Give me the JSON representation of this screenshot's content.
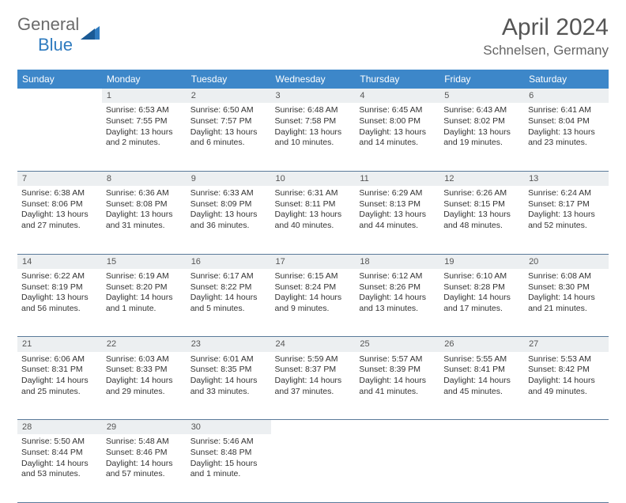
{
  "logo": {
    "general": "General",
    "blue": "Blue"
  },
  "header": {
    "title": "April 2024",
    "location": "Schnelsen, Germany"
  },
  "colors": {
    "header_bg": "#3d87c9",
    "header_fg": "#ffffff",
    "daynum_bg": "#eceff1",
    "row_divider": "#5a7a9a",
    "logo_gray": "#6a6a6a",
    "logo_blue": "#2f7bbf"
  },
  "weekdays": [
    "Sunday",
    "Monday",
    "Tuesday",
    "Wednesday",
    "Thursday",
    "Friday",
    "Saturday"
  ],
  "weeks": [
    {
      "nums": [
        "",
        "1",
        "2",
        "3",
        "4",
        "5",
        "6"
      ],
      "cells": [
        null,
        {
          "sunrise": "Sunrise: 6:53 AM",
          "sunset": "Sunset: 7:55 PM",
          "day1": "Daylight: 13 hours",
          "day2": "and 2 minutes."
        },
        {
          "sunrise": "Sunrise: 6:50 AM",
          "sunset": "Sunset: 7:57 PM",
          "day1": "Daylight: 13 hours",
          "day2": "and 6 minutes."
        },
        {
          "sunrise": "Sunrise: 6:48 AM",
          "sunset": "Sunset: 7:58 PM",
          "day1": "Daylight: 13 hours",
          "day2": "and 10 minutes."
        },
        {
          "sunrise": "Sunrise: 6:45 AM",
          "sunset": "Sunset: 8:00 PM",
          "day1": "Daylight: 13 hours",
          "day2": "and 14 minutes."
        },
        {
          "sunrise": "Sunrise: 6:43 AM",
          "sunset": "Sunset: 8:02 PM",
          "day1": "Daylight: 13 hours",
          "day2": "and 19 minutes."
        },
        {
          "sunrise": "Sunrise: 6:41 AM",
          "sunset": "Sunset: 8:04 PM",
          "day1": "Daylight: 13 hours",
          "day2": "and 23 minutes."
        }
      ]
    },
    {
      "nums": [
        "7",
        "8",
        "9",
        "10",
        "11",
        "12",
        "13"
      ],
      "cells": [
        {
          "sunrise": "Sunrise: 6:38 AM",
          "sunset": "Sunset: 8:06 PM",
          "day1": "Daylight: 13 hours",
          "day2": "and 27 minutes."
        },
        {
          "sunrise": "Sunrise: 6:36 AM",
          "sunset": "Sunset: 8:08 PM",
          "day1": "Daylight: 13 hours",
          "day2": "and 31 minutes."
        },
        {
          "sunrise": "Sunrise: 6:33 AM",
          "sunset": "Sunset: 8:09 PM",
          "day1": "Daylight: 13 hours",
          "day2": "and 36 minutes."
        },
        {
          "sunrise": "Sunrise: 6:31 AM",
          "sunset": "Sunset: 8:11 PM",
          "day1": "Daylight: 13 hours",
          "day2": "and 40 minutes."
        },
        {
          "sunrise": "Sunrise: 6:29 AM",
          "sunset": "Sunset: 8:13 PM",
          "day1": "Daylight: 13 hours",
          "day2": "and 44 minutes."
        },
        {
          "sunrise": "Sunrise: 6:26 AM",
          "sunset": "Sunset: 8:15 PM",
          "day1": "Daylight: 13 hours",
          "day2": "and 48 minutes."
        },
        {
          "sunrise": "Sunrise: 6:24 AM",
          "sunset": "Sunset: 8:17 PM",
          "day1": "Daylight: 13 hours",
          "day2": "and 52 minutes."
        }
      ]
    },
    {
      "nums": [
        "14",
        "15",
        "16",
        "17",
        "18",
        "19",
        "20"
      ],
      "cells": [
        {
          "sunrise": "Sunrise: 6:22 AM",
          "sunset": "Sunset: 8:19 PM",
          "day1": "Daylight: 13 hours",
          "day2": "and 56 minutes."
        },
        {
          "sunrise": "Sunrise: 6:19 AM",
          "sunset": "Sunset: 8:20 PM",
          "day1": "Daylight: 14 hours",
          "day2": "and 1 minute."
        },
        {
          "sunrise": "Sunrise: 6:17 AM",
          "sunset": "Sunset: 8:22 PM",
          "day1": "Daylight: 14 hours",
          "day2": "and 5 minutes."
        },
        {
          "sunrise": "Sunrise: 6:15 AM",
          "sunset": "Sunset: 8:24 PM",
          "day1": "Daylight: 14 hours",
          "day2": "and 9 minutes."
        },
        {
          "sunrise": "Sunrise: 6:12 AM",
          "sunset": "Sunset: 8:26 PM",
          "day1": "Daylight: 14 hours",
          "day2": "and 13 minutes."
        },
        {
          "sunrise": "Sunrise: 6:10 AM",
          "sunset": "Sunset: 8:28 PM",
          "day1": "Daylight: 14 hours",
          "day2": "and 17 minutes."
        },
        {
          "sunrise": "Sunrise: 6:08 AM",
          "sunset": "Sunset: 8:30 PM",
          "day1": "Daylight: 14 hours",
          "day2": "and 21 minutes."
        }
      ]
    },
    {
      "nums": [
        "21",
        "22",
        "23",
        "24",
        "25",
        "26",
        "27"
      ],
      "cells": [
        {
          "sunrise": "Sunrise: 6:06 AM",
          "sunset": "Sunset: 8:31 PM",
          "day1": "Daylight: 14 hours",
          "day2": "and 25 minutes."
        },
        {
          "sunrise": "Sunrise: 6:03 AM",
          "sunset": "Sunset: 8:33 PM",
          "day1": "Daylight: 14 hours",
          "day2": "and 29 minutes."
        },
        {
          "sunrise": "Sunrise: 6:01 AM",
          "sunset": "Sunset: 8:35 PM",
          "day1": "Daylight: 14 hours",
          "day2": "and 33 minutes."
        },
        {
          "sunrise": "Sunrise: 5:59 AM",
          "sunset": "Sunset: 8:37 PM",
          "day1": "Daylight: 14 hours",
          "day2": "and 37 minutes."
        },
        {
          "sunrise": "Sunrise: 5:57 AM",
          "sunset": "Sunset: 8:39 PM",
          "day1": "Daylight: 14 hours",
          "day2": "and 41 minutes."
        },
        {
          "sunrise": "Sunrise: 5:55 AM",
          "sunset": "Sunset: 8:41 PM",
          "day1": "Daylight: 14 hours",
          "day2": "and 45 minutes."
        },
        {
          "sunrise": "Sunrise: 5:53 AM",
          "sunset": "Sunset: 8:42 PM",
          "day1": "Daylight: 14 hours",
          "day2": "and 49 minutes."
        }
      ]
    },
    {
      "nums": [
        "28",
        "29",
        "30",
        "",
        "",
        "",
        ""
      ],
      "cells": [
        {
          "sunrise": "Sunrise: 5:50 AM",
          "sunset": "Sunset: 8:44 PM",
          "day1": "Daylight: 14 hours",
          "day2": "and 53 minutes."
        },
        {
          "sunrise": "Sunrise: 5:48 AM",
          "sunset": "Sunset: 8:46 PM",
          "day1": "Daylight: 14 hours",
          "day2": "and 57 minutes."
        },
        {
          "sunrise": "Sunrise: 5:46 AM",
          "sunset": "Sunset: 8:48 PM",
          "day1": "Daylight: 15 hours",
          "day2": "and 1 minute."
        },
        null,
        null,
        null,
        null
      ]
    }
  ]
}
